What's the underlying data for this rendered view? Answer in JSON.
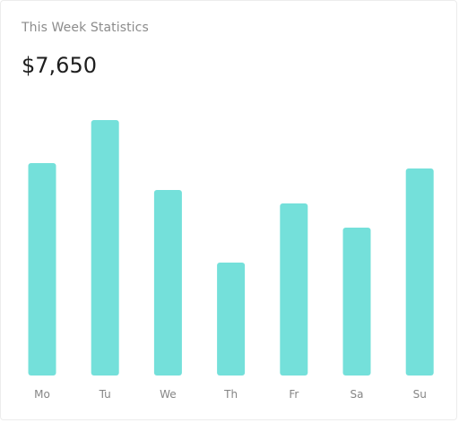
{
  "card": {
    "subtitle": "This Week Statistics",
    "total": "$7,650"
  },
  "colors": {
    "bar": "#74e0da",
    "subtitle": "#8c8c8c",
    "total": "#1e1e1e",
    "tick": "#858585"
  },
  "chart_data": {
    "type": "bar",
    "title": "This Week Statistics",
    "categories": [
      "Mo",
      "Tu",
      "We",
      "Th",
      "Fr",
      "Sa",
      "Su"
    ],
    "values": [
      79,
      95,
      69,
      42,
      64,
      55,
      77
    ],
    "ylim": [
      0,
      100
    ],
    "xlabel": "",
    "ylabel": "",
    "grid": false,
    "legend": "none"
  }
}
